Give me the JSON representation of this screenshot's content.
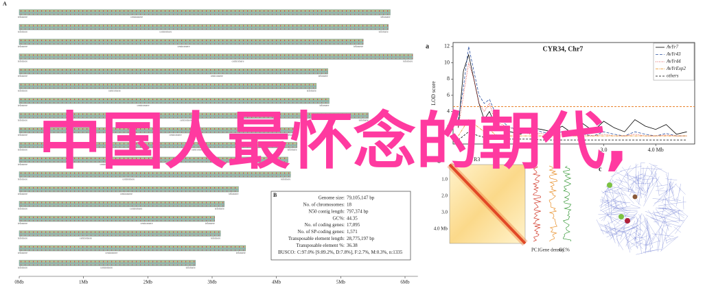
{
  "overlay_text": "中国人最怀念的朝代,",
  "panel_A": {
    "label": "A",
    "centromere_label": "centromere",
    "telomere_label": "telomere",
    "xlim": [
      0,
      6.2
    ],
    "xticks": [
      {
        "value": 0,
        "label": "0Mb"
      },
      {
        "value": 1,
        "label": "1Mb"
      },
      {
        "value": 2,
        "label": "2Mb"
      },
      {
        "value": 3,
        "label": "3Mb"
      },
      {
        "value": 4,
        "label": "4Mb"
      },
      {
        "value": 5,
        "label": "5Mb"
      },
      {
        "value": 6,
        "label": "6Mb"
      }
    ],
    "chromosome_lengths": [
      5.77,
      5.74,
      5.35,
      6.12,
      4.8,
      4.62,
      4.82,
      5.43,
      4.32,
      4.32,
      4.18,
      4.22,
      3.41,
      3.19,
      3.04,
      3.13,
      3.52,
      2.74
    ]
  },
  "panel_B": {
    "label": "B",
    "rows": [
      [
        "Genome size:",
        "79,105,147 bp"
      ],
      [
        "No. of chromosomes:",
        "18"
      ],
      [
        "N50 contig length:",
        "797,374 bp"
      ],
      [
        "GC%:",
        "44.35"
      ],
      [
        "No. of coding genes:",
        "17,095"
      ],
      [
        "No. of SP-coding genes:",
        "1,571"
      ],
      [
        "Transposable element length:",
        "28,775,197 bp"
      ],
      [
        "Transposable element %:",
        "36.38"
      ],
      [
        "BUSCO:",
        "C:97.0% [S:89.2%, D:7.8%], F:2.7%, M:0.3%, n:1335"
      ]
    ]
  },
  "panel_a": {
    "label": "a",
    "title": "CYR34, Chr7",
    "y_label": "LOD score",
    "ylim": [
      0,
      12.5
    ],
    "yticks": [
      2,
      4,
      6,
      8,
      10,
      12
    ],
    "xlim": [
      0.1,
      4.75
    ],
    "xticks": [
      {
        "value": 3,
        "label": "3.0"
      },
      {
        "value": 4,
        "label": "4.0 Mb"
      }
    ],
    "threshold": 4.6,
    "x": [
      0.2,
      0.3,
      0.4,
      0.5,
      0.6,
      0.7,
      0.8,
      0.9,
      1.0,
      1.2,
      1.4,
      1.6,
      1.8,
      2.0,
      2.2,
      2.4,
      2.6,
      2.8,
      3.0,
      3.2,
      3.4,
      3.6,
      3.8,
      4.0,
      4.2,
      4.4,
      4.6
    ],
    "series": [
      {
        "name": "AvYr7",
        "color": "#000000",
        "dash": "",
        "values": [
          2,
          9,
          11,
          8,
          5,
          3,
          4,
          2.5,
          2,
          1.5,
          1.2,
          2,
          1.8,
          1.5,
          2.2,
          1.3,
          2.5,
          1.6,
          2.8,
          2,
          1.5,
          3,
          2.2,
          1.8,
          2.4,
          1.2,
          1.5
        ]
      },
      {
        "name": "AvYr43",
        "color": "#2a4fa0",
        "dash": "4 2",
        "values": [
          3,
          7,
          12,
          9,
          6,
          5,
          5.5,
          4,
          3,
          2,
          1.8,
          2,
          1.5,
          1.2,
          1.5,
          1,
          1.2,
          1,
          1.5,
          1.2,
          1,
          1.5,
          1.2,
          1,
          1.3,
          1,
          1
        ]
      },
      {
        "name": "AvYr44",
        "color": "#d62020",
        "dash": "1 1.5",
        "values": [
          2,
          6,
          10,
          8,
          5,
          4,
          5,
          3,
          2.5,
          2,
          1.5,
          1.2,
          1.3,
          1,
          1.2,
          1,
          1,
          1,
          1.2,
          1,
          1,
          1.2,
          1,
          1,
          1.1,
          1,
          1
        ]
      },
      {
        "name": "AvYrExp2",
        "color": "#e89020",
        "dash": "4 1 1 1",
        "values": [
          1,
          2,
          3,
          2.5,
          2,
          1.5,
          1.8,
          1.2,
          1,
          1,
          1,
          1,
          1,
          1,
          1,
          1,
          1,
          1,
          1,
          1,
          1,
          1,
          1,
          1,
          1,
          1,
          1
        ]
      },
      {
        "name": "others",
        "color": "#000000",
        "dash": "3 2",
        "values": [
          0.5,
          1,
          1.5,
          1.2,
          1,
          0.8,
          1,
          0.8,
          0.7,
          0.6,
          0.6,
          0.6,
          0.5,
          0.5,
          0.5,
          0.5,
          0.5,
          0.5,
          0.5,
          0.5,
          0.5,
          0.5,
          0.5,
          0.5,
          0.5,
          0.5,
          0.5
        ]
      }
    ]
  },
  "panel_b": {
    "label": "b",
    "heading": "R3",
    "ticks": [
      "1.0",
      "2.0",
      "3.0",
      "4.0 Mb"
    ],
    "tracks": [
      "PC1",
      "Gene density",
      "GC%"
    ]
  },
  "panel_c": {
    "label": "c"
  }
}
